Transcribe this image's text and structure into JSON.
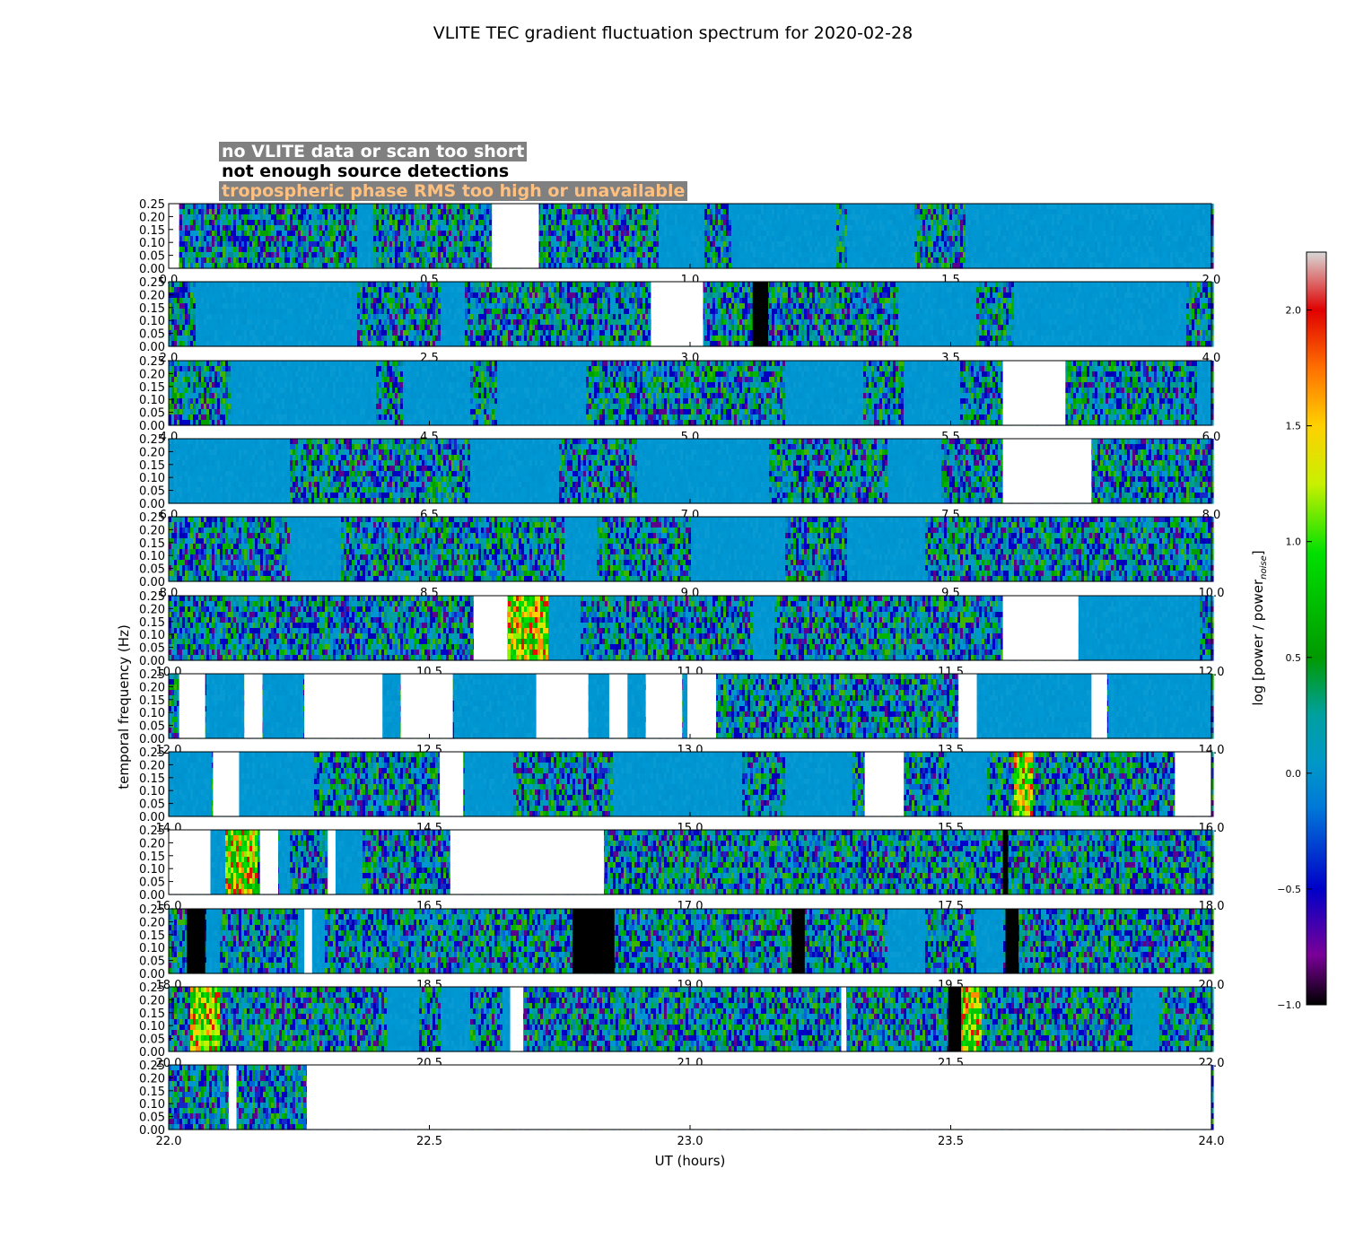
{
  "chart_data": {
    "type": "heatmap",
    "title": "VLITE TEC gradient fluctuation spectrum for 2020-02-28",
    "xlabel": "UT (hours)",
    "ylabel": "temporal frequency (Hz)",
    "colorbar_label": "log [power / power",
    "colorbar_label_sub": "noise",
    "colorbar_label_end": "]",
    "colorbar_range": [
      -1.0,
      2.25
    ],
    "colorbar_ticks": [
      "−1.0",
      "−0.5",
      "0.0",
      "0.5",
      "1.0",
      "1.5",
      "2.0"
    ],
    "colorbar_tick_values": [
      -1.0,
      -0.5,
      0.0,
      0.5,
      1.0,
      1.5,
      2.0
    ],
    "ylim": [
      0,
      0.25
    ],
    "y_ticks": [
      "0.00",
      "0.05",
      "0.10",
      "0.15",
      "0.20",
      "0.25"
    ],
    "y_tick_values": [
      0.0,
      0.05,
      0.1,
      0.15,
      0.2,
      0.25
    ],
    "legend": [
      {
        "label": "no VLITE data or scan too short",
        "status": "no-data",
        "color": "#ffffff"
      },
      {
        "label": "not enough source detections",
        "status": "few-detections",
        "color": "#000000"
      },
      {
        "label": "tropospheric phase RMS too high or unavailable",
        "status": "tropo-rms-high",
        "color": "#808080"
      }
    ],
    "rows": [
      {
        "x_range": [
          0.0,
          2.0
        ],
        "x_ticks": [
          "0.0",
          "0.5",
          "1.0",
          "1.5",
          "2.0"
        ],
        "flags": [
          {
            "start": 0.0,
            "end": 0.02,
            "status": "no-data"
          },
          {
            "start": 0.62,
            "end": 0.71,
            "status": "no-data"
          }
        ],
        "quiet": [
          [
            0.36,
            0.39
          ],
          [
            0.94,
            1.03
          ],
          [
            1.08,
            1.28
          ],
          [
            1.3,
            1.43
          ],
          [
            1.53,
            2.0
          ]
        ]
      },
      {
        "x_range": [
          2.0,
          4.0
        ],
        "x_ticks": [
          "2.0",
          "2.5",
          "3.0",
          "3.5",
          "4.0"
        ],
        "flags": [
          {
            "start": 2.925,
            "end": 3.025,
            "status": "no-data"
          },
          {
            "start": 3.12,
            "end": 3.15,
            "status": "few-detections"
          }
        ],
        "quiet": [
          [
            2.05,
            2.36
          ],
          [
            2.52,
            2.57
          ],
          [
            3.4,
            3.55
          ],
          [
            3.62,
            3.95
          ]
        ]
      },
      {
        "x_range": [
          4.0,
          6.0
        ],
        "x_ticks": [
          "4.0",
          "4.5",
          "5.0",
          "5.5",
          "6.0"
        ],
        "flags": [
          {
            "start": 5.6,
            "end": 5.72,
            "status": "no-data"
          }
        ],
        "quiet": [
          [
            4.12,
            4.4
          ],
          [
            4.45,
            4.58
          ],
          [
            4.63,
            4.8
          ],
          [
            5.18,
            5.33
          ],
          [
            5.41,
            5.52
          ],
          [
            5.97,
            6.0
          ]
        ]
      },
      {
        "x_range": [
          6.0,
          8.0
        ],
        "x_ticks": [
          "6.0",
          "6.5",
          "7.0",
          "7.5",
          "8.0"
        ],
        "flags": [
          {
            "start": 7.6,
            "end": 7.77,
            "status": "no-data"
          }
        ],
        "quiet": [
          [
            6.0,
            6.23
          ],
          [
            6.58,
            6.75
          ],
          [
            6.9,
            7.15
          ],
          [
            7.38,
            7.48
          ]
        ]
      },
      {
        "x_range": [
          8.0,
          10.0
        ],
        "x_ticks": [
          "8.0",
          "8.5",
          "9.0",
          "9.5",
          "10.0"
        ],
        "flags": [],
        "quiet": [
          [
            8.23,
            8.33
          ],
          [
            8.76,
            8.82
          ],
          [
            9.0,
            9.18
          ],
          [
            9.3,
            9.45
          ]
        ]
      },
      {
        "x_range": [
          10.0,
          12.0
        ],
        "x_ticks": [
          "10.0",
          "10.5",
          "11.0",
          "11.5",
          "12.0"
        ],
        "flags": [
          {
            "start": 10.585,
            "end": 10.65,
            "status": "no-data"
          },
          {
            "start": 11.6,
            "end": 11.745,
            "status": "no-data"
          }
        ],
        "hot": [
          [
            10.65,
            10.73
          ]
        ],
        "quiet": [
          [
            10.73,
            10.79
          ],
          [
            11.12,
            11.16
          ],
          [
            11.745,
            11.98
          ]
        ]
      },
      {
        "x_range": [
          12.0,
          14.0
        ],
        "x_ticks": [
          "12.0",
          "12.5",
          "13.0",
          "13.5",
          "14.0"
        ],
        "flags": [
          {
            "start": 12.02,
            "end": 12.07,
            "status": "no-data"
          },
          {
            "start": 12.145,
            "end": 12.18,
            "status": "no-data"
          },
          {
            "start": 12.26,
            "end": 12.41,
            "status": "no-data"
          },
          {
            "start": 12.445,
            "end": 12.545,
            "status": "no-data"
          },
          {
            "start": 12.705,
            "end": 12.805,
            "status": "no-data"
          },
          {
            "start": 12.845,
            "end": 12.88,
            "status": "no-data"
          },
          {
            "start": 12.915,
            "end": 12.985,
            "status": "no-data"
          },
          {
            "start": 12.995,
            "end": 13.05,
            "status": "no-data"
          },
          {
            "start": 13.515,
            "end": 13.55,
            "status": "no-data"
          },
          {
            "start": 13.77,
            "end": 13.8,
            "status": "no-data"
          }
        ],
        "quiet": [
          [
            12.07,
            12.145
          ],
          [
            12.18,
            12.26
          ],
          [
            12.41,
            12.445
          ],
          [
            12.545,
            12.705
          ],
          [
            12.805,
            12.845
          ],
          [
            12.88,
            12.915
          ],
          [
            12.985,
            12.995
          ],
          [
            13.55,
            13.77
          ],
          [
            13.8,
            14.0
          ]
        ]
      },
      {
        "x_range": [
          14.0,
          16.0
        ],
        "x_ticks": [
          "14.0",
          "14.5",
          "15.0",
          "15.5",
          "16.0"
        ],
        "flags": [
          {
            "start": 14.085,
            "end": 14.135,
            "status": "no-data"
          },
          {
            "start": 14.52,
            "end": 14.565,
            "status": "no-data"
          },
          {
            "start": 15.335,
            "end": 15.41,
            "status": "no-data"
          },
          {
            "start": 15.93,
            "end": 16.0,
            "status": "no-data"
          }
        ],
        "hot": [
          [
            15.62,
            15.66
          ]
        ],
        "quiet": [
          [
            14.0,
            14.085
          ],
          [
            14.135,
            14.28
          ],
          [
            14.57,
            14.66
          ],
          [
            14.85,
            15.1
          ],
          [
            15.18,
            15.31
          ],
          [
            15.5,
            15.57
          ]
        ]
      },
      {
        "x_range": [
          16.0,
          18.0
        ],
        "x_ticks": [
          "16.0",
          "16.5",
          "17.0",
          "17.5",
          "18.0"
        ],
        "flags": [
          {
            "start": 16.0,
            "end": 16.08,
            "status": "no-data"
          },
          {
            "start": 16.175,
            "end": 16.21,
            "status": "no-data"
          },
          {
            "start": 16.305,
            "end": 16.32,
            "status": "no-data"
          },
          {
            "start": 16.54,
            "end": 16.835,
            "status": "no-data"
          },
          {
            "start": 17.6,
            "end": 17.61,
            "status": "few-detections"
          }
        ],
        "hot": [
          [
            16.11,
            16.17
          ]
        ],
        "quiet": [
          [
            16.08,
            16.11
          ],
          [
            16.21,
            16.23
          ],
          [
            16.32,
            16.37
          ]
        ]
      },
      {
        "x_range": [
          18.0,
          20.0
        ],
        "x_ticks": [
          "18.0",
          "18.5",
          "19.0",
          "19.5",
          "20.0"
        ],
        "flags": [
          {
            "start": 18.035,
            "end": 18.07,
            "status": "few-detections"
          },
          {
            "start": 18.26,
            "end": 18.275,
            "status": "no-data"
          },
          {
            "start": 18.775,
            "end": 18.855,
            "status": "few-detections"
          },
          {
            "start": 19.195,
            "end": 19.22,
            "status": "few-detections"
          },
          {
            "start": 19.605,
            "end": 19.63,
            "status": "few-detections"
          }
        ],
        "quiet": [
          [
            18.07,
            18.1
          ],
          [
            18.25,
            18.3
          ],
          [
            19.38,
            19.45
          ],
          [
            19.55,
            19.6
          ]
        ]
      },
      {
        "x_range": [
          20.0,
          22.0
        ],
        "x_ticks": [
          "20.0",
          "20.5",
          "21.0",
          "21.5",
          "22.0"
        ],
        "flags": [
          {
            "start": 20.655,
            "end": 20.68,
            "status": "no-data"
          },
          {
            "start": 21.29,
            "end": 21.3,
            "status": "no-data"
          },
          {
            "start": 21.495,
            "end": 21.52,
            "status": "few-detections"
          }
        ],
        "hot": [
          [
            20.04,
            20.1
          ],
          [
            21.52,
            21.56
          ]
        ],
        "quiet": [
          [
            20.42,
            20.48
          ],
          [
            20.52,
            20.58
          ],
          [
            20.64,
            20.655
          ],
          [
            21.3,
            21.3
          ],
          [
            21.85,
            21.9
          ]
        ]
      },
      {
        "x_range": [
          22.0,
          24.0
        ],
        "x_ticks": [
          "22.0",
          "22.5",
          "23.0",
          "23.5",
          "24.0"
        ],
        "flags": [
          {
            "start": 22.115,
            "end": 22.13,
            "status": "no-data"
          },
          {
            "start": 22.265,
            "end": 24.0,
            "status": "no-data"
          }
        ],
        "quiet": []
      }
    ]
  }
}
